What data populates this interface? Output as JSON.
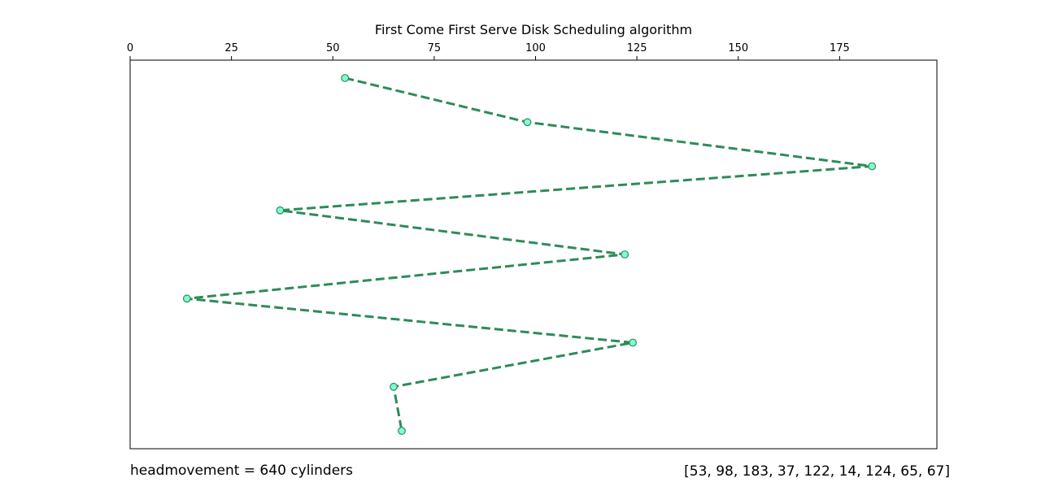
{
  "chart_data": {
    "type": "line",
    "title": "First Come First Serve Disk Scheduling algorithm",
    "xlabel": "",
    "ylabel": "",
    "xlim": [
      0,
      199
    ],
    "x_ticks": [
      0,
      25,
      50,
      75,
      100,
      125,
      150,
      175
    ],
    "x_axis_position": "top",
    "y_axis_visible": false,
    "y_inverted": true,
    "grid": false,
    "series": [
      {
        "x": [
          53,
          98,
          183,
          37,
          122,
          14,
          124,
          65,
          67
        ],
        "y": [
          0,
          1,
          2,
          3,
          4,
          5,
          6,
          7,
          8
        ],
        "line_style": "dashed",
        "line_color": "#2e8b57",
        "marker": "circle",
        "marker_face_color": "#7fffd4",
        "marker_edge_color": "#2e8b57"
      }
    ],
    "annotations": {
      "head_movement": "headmovement = 640 cylinders",
      "request_sequence": "[53, 98, 183, 37, 122, 14, 124, 65, 67]"
    }
  }
}
